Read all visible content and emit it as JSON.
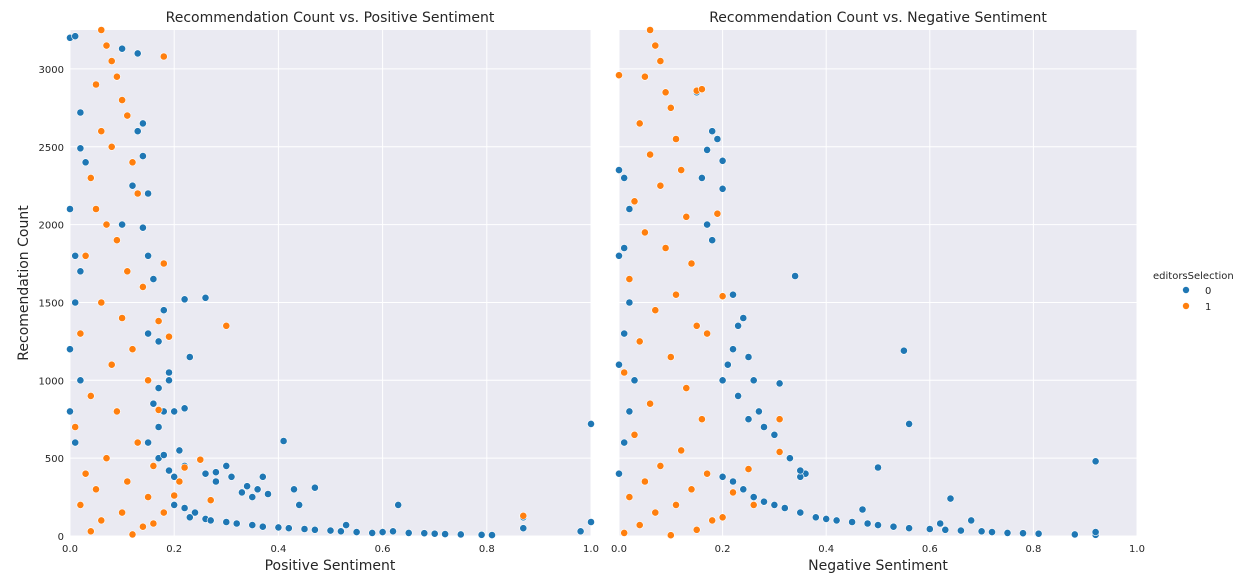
{
  "chart_data": [
    {
      "type": "scatter",
      "title": "Recommendation Count vs. Positive Sentiment",
      "xlabel": "Positive Sentiment",
      "ylabel": "Recomendation Count",
      "xlim": [
        0.0,
        1.0
      ],
      "ylim": [
        0,
        3250
      ],
      "xticks": [
        "0.0",
        "0.2",
        "0.4",
        "0.6",
        "0.8",
        "1.0"
      ],
      "yticks": [
        "0",
        "500",
        "1000",
        "1500",
        "2000",
        "2500",
        "3000"
      ],
      "grid": true,
      "series": [
        {
          "name": "0",
          "color": "#1f77b4",
          "x": [
            0.0,
            0.01,
            0.02,
            0.02,
            0.03,
            0.0,
            0.01,
            0.02,
            0.01,
            0.0,
            0.02,
            0.0,
            0.01,
            0.03,
            0.1,
            0.13,
            0.14,
            0.15,
            0.12,
            0.13,
            0.14,
            0.1,
            0.14,
            0.15,
            0.16,
            0.15,
            0.18,
            0.17,
            0.19,
            0.17,
            0.22,
            0.26,
            0.23,
            0.16,
            0.18,
            0.19,
            0.2,
            0.15,
            0.17,
            0.17,
            0.18,
            0.19,
            0.21,
            0.2,
            0.22,
            0.22,
            0.26,
            0.28,
            0.3,
            0.28,
            0.31,
            0.33,
            0.34,
            0.36,
            0.37,
            0.35,
            0.38,
            0.41,
            0.44,
            0.43,
            0.47,
            0.2,
            0.22,
            0.24,
            0.23,
            0.26,
            0.27,
            0.3,
            0.32,
            0.35,
            0.37,
            0.4,
            0.42,
            0.45,
            0.47,
            0.5,
            0.52,
            0.55,
            0.58,
            0.6,
            0.62,
            0.65,
            0.68,
            0.7,
            0.72,
            0.75,
            0.79,
            0.81,
            0.87,
            0.87,
            0.63,
            0.53,
            1.0,
            1.0,
            0.98
          ],
          "y": [
            3200,
            3210,
            2720,
            2490,
            2400,
            2100,
            1800,
            1700,
            1500,
            1200,
            1000,
            800,
            600,
            400,
            3130,
            3100,
            2440,
            2200,
            2250,
            2600,
            2650,
            2000,
            1980,
            1800,
            1650,
            1300,
            1450,
            1250,
            1050,
            950,
            1520,
            1530,
            1150,
            850,
            800,
            1000,
            800,
            600,
            700,
            500,
            520,
            420,
            550,
            380,
            450,
            820,
            400,
            410,
            450,
            350,
            380,
            280,
            320,
            300,
            380,
            250,
            270,
            610,
            200,
            300,
            310,
            200,
            180,
            150,
            120,
            110,
            100,
            90,
            80,
            70,
            60,
            55,
            50,
            45,
            40,
            35,
            30,
            25,
            20,
            25,
            30,
            20,
            18,
            15,
            12,
            10,
            8,
            6,
            120,
            50,
            200,
            70,
            720,
            90,
            30
          ]
        },
        {
          "name": "1",
          "color": "#ff7f0e",
          "x": [
            0.06,
            0.07,
            0.08,
            0.09,
            0.05,
            0.1,
            0.11,
            0.06,
            0.08,
            0.12,
            0.04,
            0.13,
            0.05,
            0.07,
            0.09,
            0.03,
            0.11,
            0.14,
            0.06,
            0.1,
            0.02,
            0.12,
            0.08,
            0.15,
            0.04,
            0.09,
            0.01,
            0.13,
            0.07,
            0.16,
            0.03,
            0.11,
            0.05,
            0.15,
            0.02,
            0.1,
            0.06,
            0.14,
            0.04,
            0.12,
            0.18,
            0.17,
            0.18,
            0.3,
            0.19,
            0.17,
            0.25,
            0.27,
            0.22,
            0.87,
            0.21,
            0.2,
            0.18,
            0.16
          ],
          "y": [
            3250,
            3150,
            3050,
            2950,
            2900,
            2800,
            2700,
            2600,
            2500,
            2400,
            2300,
            2200,
            2100,
            2000,
            1900,
            1800,
            1700,
            1600,
            1500,
            1400,
            1300,
            1200,
            1100,
            1000,
            900,
            800,
            700,
            600,
            500,
            450,
            400,
            350,
            300,
            250,
            200,
            150,
            100,
            60,
            30,
            10,
            3080,
            1380,
            1750,
            1350,
            1280,
            810,
            490,
            230,
            440,
            130,
            350,
            260,
            150,
            80
          ]
        }
      ]
    },
    {
      "type": "scatter",
      "title": "Recommendation Count vs. Negative Sentiment",
      "xlabel": "Negative Sentiment",
      "ylabel": "",
      "xlim": [
        0.0,
        1.0
      ],
      "ylim": [
        0,
        3250
      ],
      "xticks": [
        "0.0",
        "0.2",
        "0.4",
        "0.6",
        "0.8",
        "1.0"
      ],
      "yticks": [],
      "grid": true,
      "series": [
        {
          "name": "0",
          "color": "#1f77b4",
          "x": [
            0.0,
            0.01,
            0.02,
            0.01,
            0.0,
            0.02,
            0.01,
            0.0,
            0.03,
            0.02,
            0.01,
            0.0,
            0.15,
            0.17,
            0.18,
            0.16,
            0.19,
            0.2,
            0.17,
            0.18,
            0.2,
            0.22,
            0.24,
            0.25,
            0.23,
            0.22,
            0.26,
            0.2,
            0.21,
            0.23,
            0.25,
            0.27,
            0.28,
            0.3,
            0.31,
            0.33,
            0.36,
            0.35,
            0.34,
            0.35,
            0.56,
            0.55,
            0.5,
            0.64,
            0.92,
            0.2,
            0.22,
            0.24,
            0.26,
            0.28,
            0.3,
            0.32,
            0.35,
            0.38,
            0.4,
            0.42,
            0.45,
            0.48,
            0.5,
            0.53,
            0.56,
            0.6,
            0.63,
            0.66,
            0.7,
            0.72,
            0.75,
            0.78,
            0.81,
            0.88,
            0.92,
            0.92,
            0.68,
            0.62,
            0.47
          ],
          "y": [
            2350,
            2300,
            2100,
            1850,
            1800,
            1500,
            1300,
            1100,
            1000,
            800,
            600,
            400,
            2850,
            2480,
            2600,
            2300,
            2550,
            2410,
            2000,
            1900,
            2230,
            1550,
            1400,
            1150,
            1350,
            1200,
            1000,
            1000,
            1100,
            900,
            750,
            800,
            700,
            650,
            980,
            500,
            400,
            380,
            1670,
            420,
            720,
            1190,
            440,
            240,
            480,
            380,
            350,
            300,
            250,
            220,
            200,
            180,
            150,
            120,
            110,
            100,
            90,
            80,
            70,
            60,
            50,
            45,
            40,
            35,
            30,
            25,
            20,
            18,
            15,
            10,
            8,
            25,
            100,
            80,
            170
          ]
        },
        {
          "name": "1",
          "color": "#ff7f0e",
          "x": [
            0.06,
            0.07,
            0.08,
            0.05,
            0.09,
            0.1,
            0.04,
            0.11,
            0.06,
            0.12,
            0.08,
            0.03,
            0.13,
            0.05,
            0.09,
            0.14,
            0.02,
            0.11,
            0.07,
            0.15,
            0.04,
            0.1,
            0.01,
            0.13,
            0.06,
            0.16,
            0.03,
            0.12,
            0.08,
            0.17,
            0.05,
            0.14,
            0.02,
            0.11,
            0.07,
            0.18,
            0.04,
            0.15,
            0.01,
            0.1,
            0.0,
            0.15,
            0.16,
            0.19,
            0.2,
            0.17,
            0.31,
            0.31,
            0.25,
            0.26,
            0.22,
            0.2
          ],
          "y": [
            3250,
            3150,
            3050,
            2950,
            2850,
            2750,
            2650,
            2550,
            2450,
            2350,
            2250,
            2150,
            2050,
            1950,
            1850,
            1750,
            1650,
            1550,
            1450,
            1350,
            1250,
            1150,
            1050,
            950,
            850,
            750,
            650,
            550,
            450,
            400,
            350,
            300,
            250,
            200,
            150,
            100,
            70,
            40,
            20,
            5,
            2960,
            2860,
            2870,
            2070,
            1540,
            1300,
            750,
            540,
            430,
            200,
            280,
            120
          ]
        }
      ]
    }
  ],
  "legend": {
    "title": "editorsSelection",
    "placement": "right",
    "entries": [
      {
        "label": "0",
        "color": "#1f77b4"
      },
      {
        "label": "1",
        "color": "#ff7f0e"
      }
    ]
  }
}
